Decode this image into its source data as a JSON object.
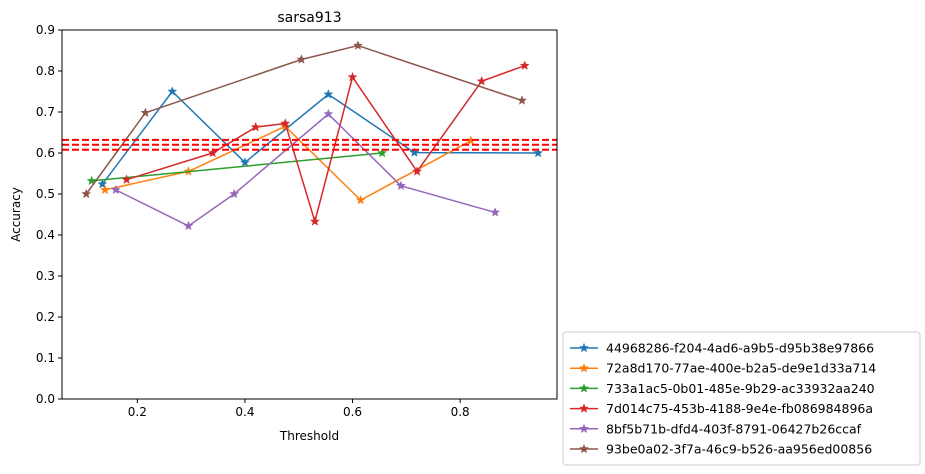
{
  "chart_data": {
    "type": "line",
    "title": "sarsa913",
    "xlabel": "Threshold",
    "ylabel": "Accuracy",
    "xlim": [
      0.06,
      0.98
    ],
    "ylim": [
      0.0,
      0.9
    ],
    "xticks": [
      "0.2",
      "0.4",
      "0.6",
      "0.8"
    ],
    "xtick_values": [
      0.2,
      0.4,
      0.6,
      0.8
    ],
    "yticks": [
      "0.0",
      "0.1",
      "0.2",
      "0.3",
      "0.4",
      "0.5",
      "0.6",
      "0.7",
      "0.8",
      "0.9"
    ],
    "ytick_values": [
      0.0,
      0.1,
      0.2,
      0.3,
      0.4,
      0.5,
      0.6,
      0.7,
      0.8,
      0.9
    ],
    "grid": false,
    "legend_position": "outside-lower-right",
    "marker": "star",
    "reference_lines": {
      "color": "#ff0000",
      "style": "dashed",
      "values": [
        0.608,
        0.62,
        0.632
      ]
    },
    "series": [
      {
        "name": "44968286-f204-4ad6-a9b5-d95b38e97866",
        "color": "#1f77b4",
        "x": [
          0.135,
          0.265,
          0.4,
          0.555,
          0.715,
          0.945
        ],
        "y": [
          0.524,
          0.75,
          0.577,
          0.743,
          0.601,
          0.6
        ]
      },
      {
        "name": "72a8d170-77ae-400e-b2a5-de9e1d33a714",
        "color": "#ff7f0e",
        "x": [
          0.14,
          0.295,
          0.475,
          0.615,
          0.82
        ],
        "y": [
          0.51,
          0.555,
          0.665,
          0.485,
          0.63
        ]
      },
      {
        "name": "733a1ac5-0b01-485e-9b29-ac33932aa240",
        "color": "#2ca02c",
        "x": [
          0.115,
          0.655
        ],
        "y": [
          0.532,
          0.6
        ]
      },
      {
        "name": "7d014c75-453b-4188-9e4e-fb086984896a",
        "color": "#d62728",
        "x": [
          0.18,
          0.34,
          0.42,
          0.475,
          0.53,
          0.6,
          0.72,
          0.84,
          0.92
        ],
        "y": [
          0.535,
          0.6,
          0.663,
          0.672,
          0.433,
          0.785,
          0.555,
          0.775,
          0.813
        ]
      },
      {
        "name": "8bf5b71b-dfd4-403f-8791-06427b26ccaf",
        "color": "#9467bd",
        "x": [
          0.16,
          0.295,
          0.38,
          0.555,
          0.69,
          0.865
        ],
        "y": [
          0.51,
          0.422,
          0.5,
          0.695,
          0.52,
          0.455
        ]
      },
      {
        "name": "93be0a02-3f7a-46c9-b526-aa956ed00856",
        "color": "#8c564b",
        "x": [
          0.105,
          0.215,
          0.505,
          0.61,
          0.915
        ],
        "y": [
          0.5,
          0.698,
          0.828,
          0.862,
          0.728
        ]
      }
    ]
  }
}
